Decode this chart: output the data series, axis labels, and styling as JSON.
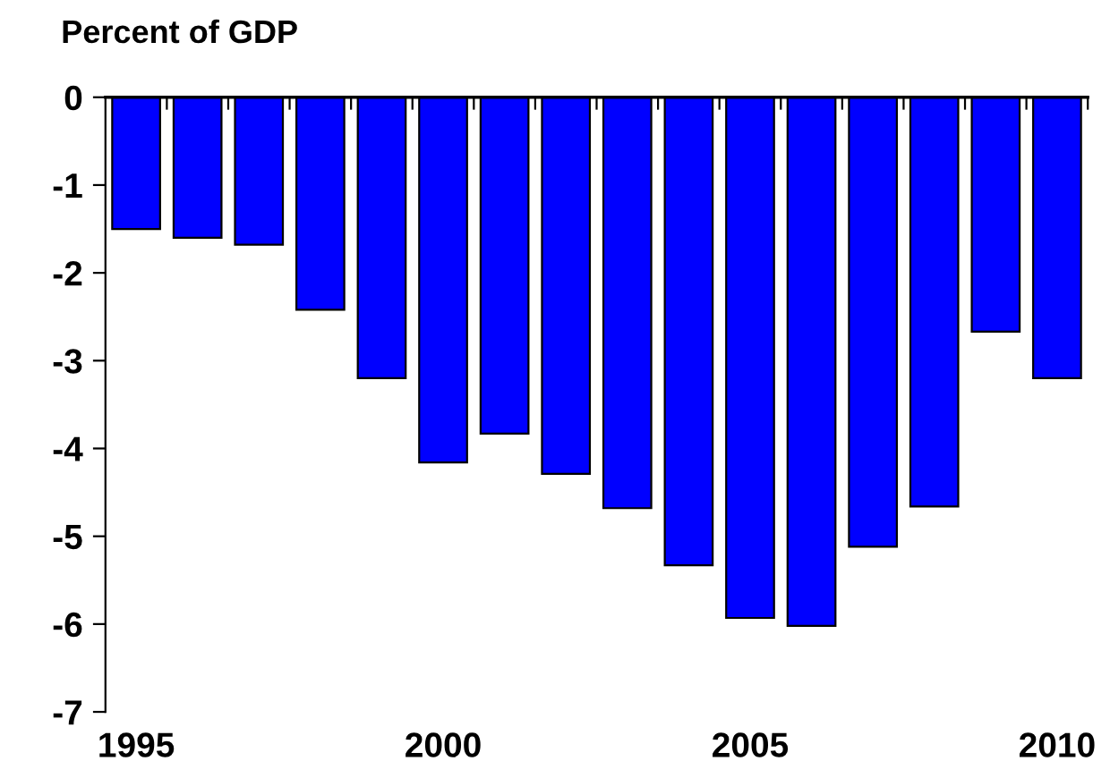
{
  "chart_data": {
    "type": "bar",
    "ylabel": "Percent of GDP",
    "categories": [
      "1995",
      null,
      null,
      null,
      null,
      "2000",
      null,
      null,
      null,
      null,
      "2005",
      null,
      null,
      null,
      null,
      "2010"
    ],
    "values": [
      -1.5,
      -1.6,
      -1.68,
      -2.42,
      -3.2,
      -4.16,
      -3.83,
      -4.29,
      -4.68,
      -5.33,
      -5.93,
      -6.02,
      -5.12,
      -4.66,
      -2.67,
      -3.2
    ],
    "color": "#0000ff",
    "ylim": [
      -7,
      0
    ],
    "yticks": [
      -7,
      -6,
      -5,
      -4,
      -3,
      -2,
      -1,
      0
    ],
    "grid": false,
    "legend": false
  }
}
